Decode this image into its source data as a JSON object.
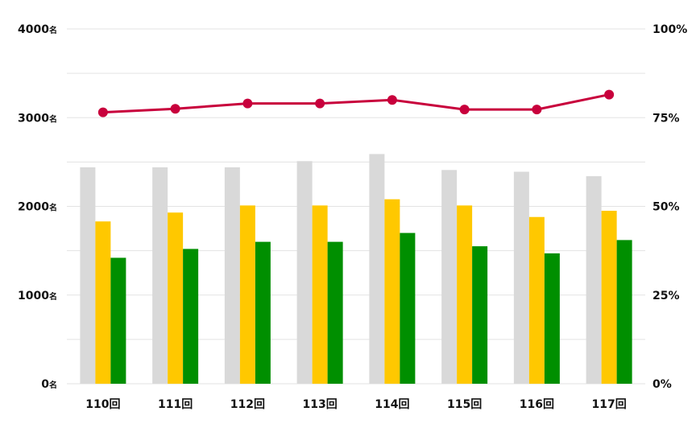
{
  "chart_data": {
    "type": "bar",
    "categories": [
      "110回",
      "111回",
      "112回",
      "113回",
      "114回",
      "115回",
      "116回",
      "117回"
    ],
    "series": [
      {
        "type": "bar",
        "axis": "left",
        "color": "#d9d9d9",
        "values": [
          2440,
          2440,
          2440,
          2510,
          2590,
          2410,
          2390,
          2340
        ]
      },
      {
        "type": "bar",
        "axis": "left",
        "color": "#ffc800",
        "values": [
          1830,
          1930,
          2010,
          2010,
          2080,
          2010,
          1880,
          1950
        ]
      },
      {
        "type": "bar",
        "axis": "left",
        "color": "#008f00",
        "values": [
          1420,
          1520,
          1600,
          1600,
          1700,
          1550,
          1470,
          1620
        ]
      },
      {
        "type": "line",
        "axis": "right",
        "color": "#c8003c",
        "values": [
          76.5,
          77.5,
          79.0,
          79.0,
          80.0,
          77.3,
          77.3,
          81.5
        ]
      }
    ],
    "y_left": {
      "min": 0,
      "max": 4000,
      "ticks": [
        0,
        1000,
        2000,
        3000,
        4000
      ],
      "unit": "名"
    },
    "y_right": {
      "min": 0,
      "max": 100,
      "ticks": [
        0,
        25,
        50,
        75,
        100
      ],
      "unit": "%"
    },
    "grid": true,
    "legend": "none"
  }
}
